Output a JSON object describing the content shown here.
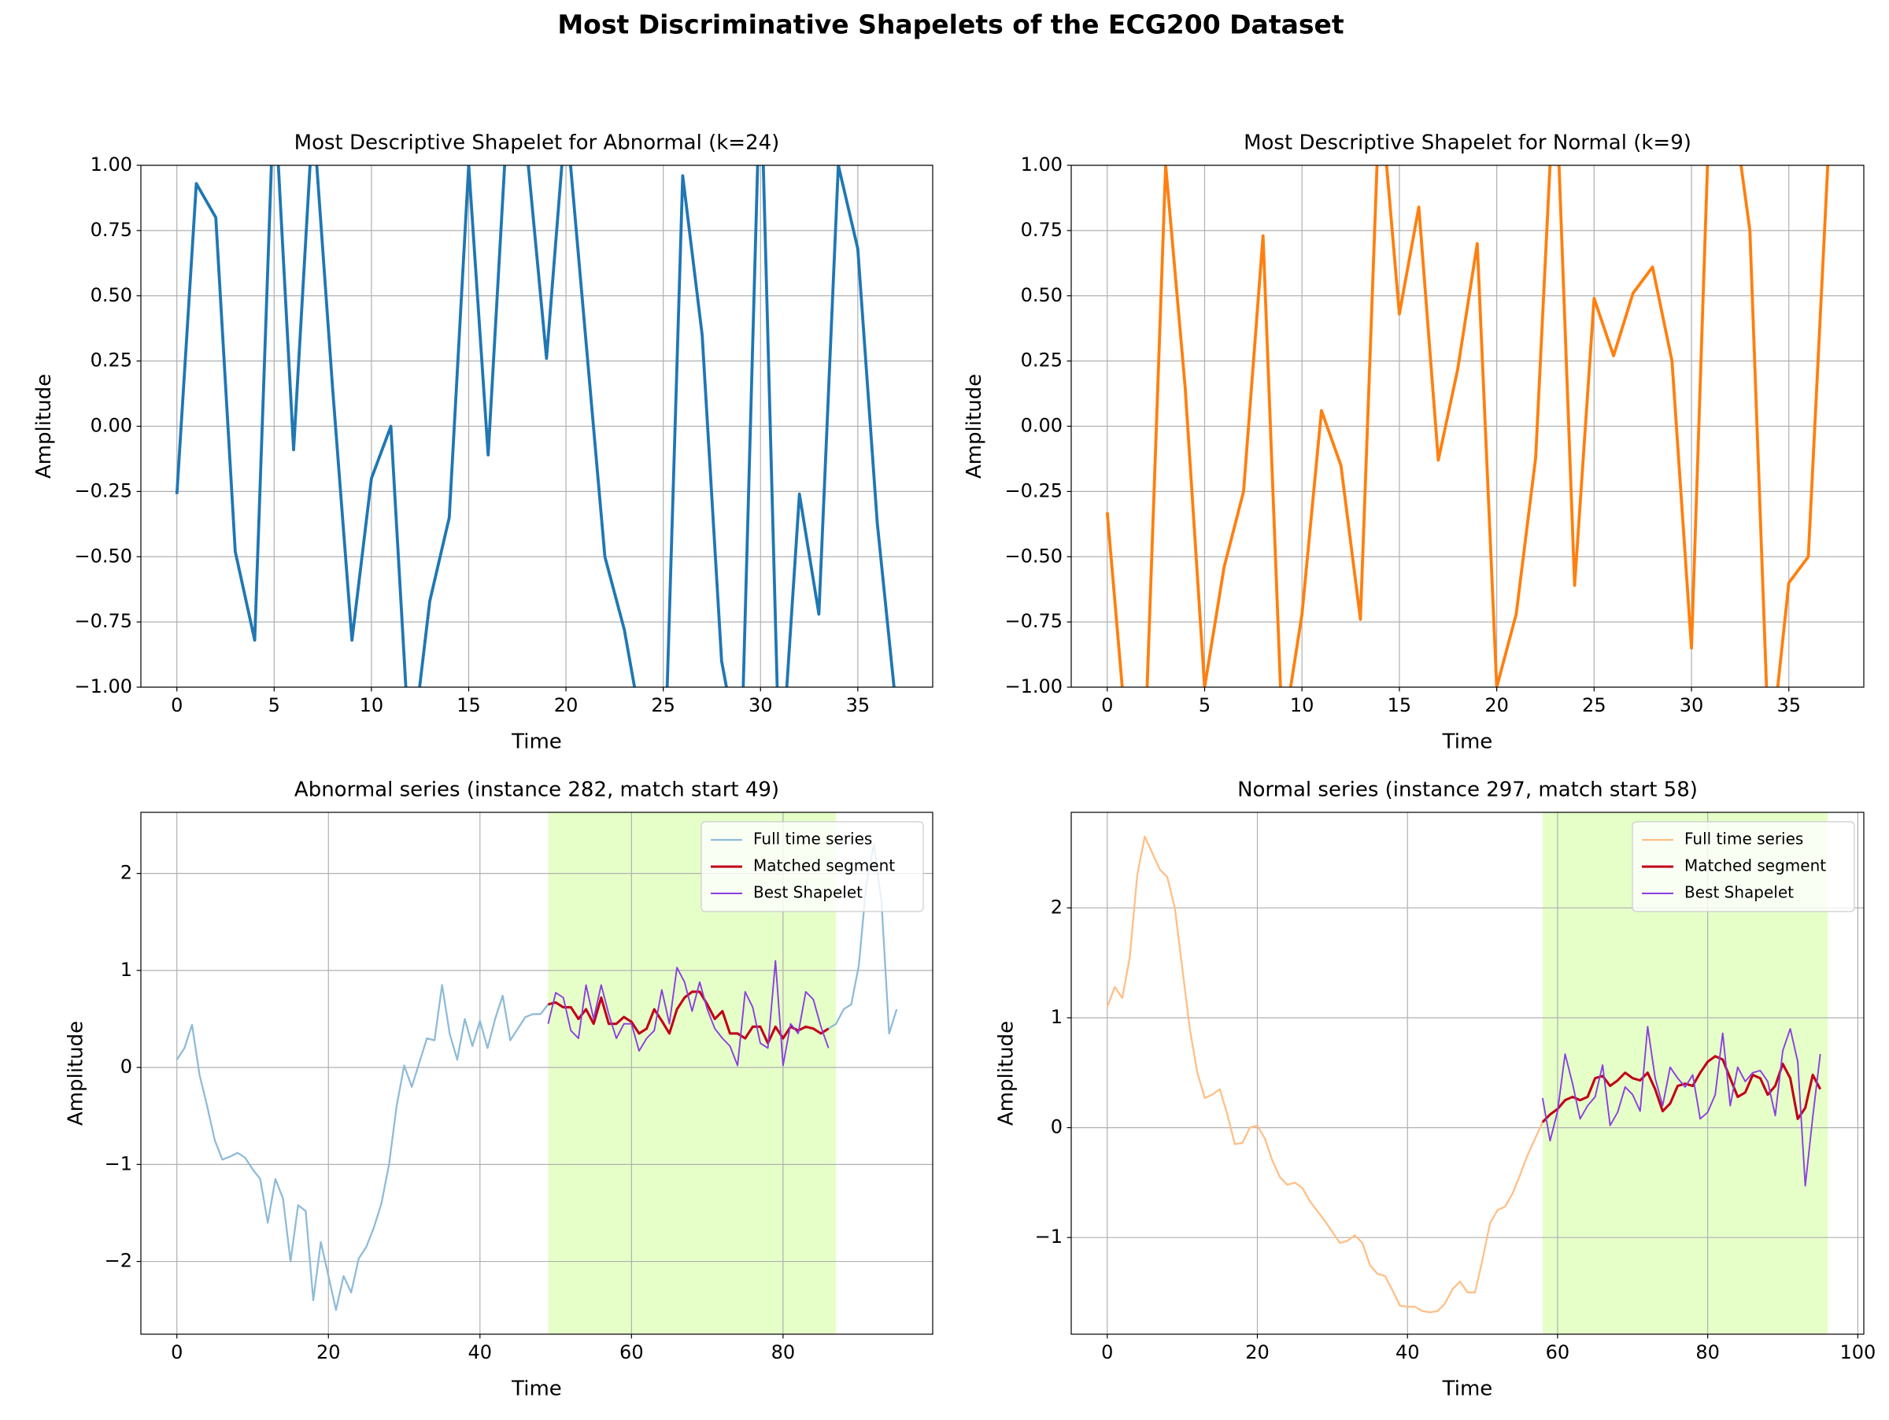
{
  "title": "Most Discriminative Shapelets of the ECG200 Dataset",
  "chart_data": [
    {
      "type": "line",
      "title": "Most Descriptive Shapelet for Abnormal (k=24)",
      "xlabel": "Time",
      "ylabel": "Amplitude",
      "xlim": [
        -1.85,
        38.85
      ],
      "ylim": [
        -1,
        1
      ],
      "grid": true,
      "xticks": [
        0,
        5,
        10,
        15,
        20,
        25,
        30,
        35
      ],
      "yticks": [
        {
          "value": -1,
          "label": "−1.00"
        },
        {
          "value": -0.75,
          "label": "−0.75"
        },
        {
          "value": -0.5,
          "label": "−0.50"
        },
        {
          "value": -0.25,
          "label": "−0.25"
        },
        {
          "value": 0,
          "label": "0.00"
        },
        {
          "value": 0.25,
          "label": "0.25"
        },
        {
          "value": 0.5,
          "label": "0.50"
        },
        {
          "value": 0.75,
          "label": "0.75"
        },
        {
          "value": 1,
          "label": "1.00"
        }
      ],
      "series": [
        {
          "color": "#1f77b4",
          "x": [
            0,
            1,
            2,
            3,
            4,
            5,
            6,
            7,
            8,
            9,
            10,
            11,
            12,
            13,
            14,
            15,
            16,
            17,
            18,
            19,
            20,
            21,
            22,
            23,
            24,
            25,
            26,
            27,
            28,
            29,
            30,
            31,
            32,
            33,
            34,
            35,
            36,
            37
          ],
          "values": [
            -0.26,
            0.93,
            0.8,
            -0.48,
            -0.82,
            1.3,
            -0.09,
            1.2,
            0.15,
            -0.82,
            -0.2,
            0.0,
            -1.3,
            -0.67,
            -0.35,
            1.0,
            -0.11,
            1.2,
            1.05,
            0.26,
            1.2,
            0.35,
            -0.5,
            -0.78,
            -1.2,
            -1.5,
            0.96,
            0.35,
            -0.9,
            -1.3,
            1.4,
            -1.4,
            -0.26,
            -0.72,
            1.0,
            0.68,
            -0.37,
            -1.1
          ]
        }
      ]
    },
    {
      "type": "line",
      "title": "Most Descriptive Shapelet for Normal (k=9)",
      "xlabel": "Time",
      "ylabel": "Amplitude",
      "xlim": [
        -1.85,
        38.85
      ],
      "ylim": [
        -1,
        1
      ],
      "grid": true,
      "xticks": [
        0,
        5,
        10,
        15,
        20,
        25,
        30,
        35
      ],
      "yticks": [
        {
          "value": -1,
          "label": "−1.00"
        },
        {
          "value": -0.75,
          "label": "−0.75"
        },
        {
          "value": -0.5,
          "label": "−0.50"
        },
        {
          "value": -0.25,
          "label": "−0.25"
        },
        {
          "value": 0,
          "label": "0.00"
        },
        {
          "value": 0.25,
          "label": "0.25"
        },
        {
          "value": 0.5,
          "label": "0.50"
        },
        {
          "value": 0.75,
          "label": "0.75"
        },
        {
          "value": 1,
          "label": "1.00"
        }
      ],
      "series": [
        {
          "color": "#ff7f0e",
          "x": [
            0,
            1,
            2,
            3,
            4,
            5,
            6,
            7,
            8,
            9,
            10,
            11,
            12,
            13,
            14,
            15,
            16,
            17,
            18,
            19,
            20,
            21,
            22,
            23,
            24,
            25,
            26,
            27,
            28,
            29,
            30,
            31,
            32,
            33,
            34,
            35,
            36,
            37
          ],
          "values": [
            -0.33,
            -1.2,
            -1.1,
            1.0,
            0.15,
            -1.0,
            -0.54,
            -0.25,
            0.73,
            -1.2,
            -0.72,
            0.06,
            -0.15,
            -0.74,
            1.3,
            0.43,
            0.84,
            -0.13,
            0.22,
            0.7,
            -1.0,
            -0.72,
            -0.12,
            1.4,
            -0.61,
            0.49,
            0.27,
            0.51,
            0.61,
            0.25,
            -0.85,
            1.4,
            1.3,
            0.75,
            -1.3,
            -0.6,
            -0.5,
            1.0
          ]
        }
      ]
    },
    {
      "type": "line",
      "title": "Abnormal series (instance 282, match start 49)",
      "xlabel": "Time",
      "ylabel": "Amplitude",
      "xlim": [
        -4.75,
        99.75
      ],
      "ylim": [
        -2.75,
        2.63
      ],
      "grid": true,
      "legend": "upper right",
      "xticks": [
        0,
        20,
        40,
        60,
        80
      ],
      "yticks": [
        {
          "value": -2,
          "label": "−2"
        },
        {
          "value": -1,
          "label": "−1"
        },
        0,
        1,
        2
      ],
      "highlight": {
        "x": [
          49,
          87
        ],
        "color": "#e6ffc8"
      },
      "series": [
        {
          "name": "Full time series",
          "color": "#8fbbd9",
          "x": [
            0,
            1,
            2,
            3,
            4,
            5,
            6,
            7,
            8,
            9,
            10,
            11,
            12,
            13,
            14,
            15,
            16,
            17,
            18,
            19,
            20,
            21,
            22,
            23,
            24,
            25,
            26,
            27,
            28,
            29,
            30,
            31,
            32,
            33,
            34,
            35,
            36,
            37,
            38,
            39,
            40,
            41,
            42,
            43,
            44,
            45,
            46,
            47,
            48,
            49,
            50,
            51,
            52,
            53,
            54,
            55,
            56,
            57,
            58,
            59,
            60,
            61,
            62,
            63,
            64,
            65,
            66,
            67,
            68,
            69,
            70,
            71,
            72,
            73,
            74,
            75,
            76,
            77,
            78,
            79,
            80,
            81,
            82,
            83,
            84,
            85,
            86,
            87,
            88,
            89,
            90,
            91,
            92,
            93,
            94,
            95
          ],
          "values": [
            0.08,
            0.2,
            0.44,
            -0.08,
            -0.4,
            -0.75,
            -0.95,
            -0.92,
            -0.88,
            -0.93,
            -1.05,
            -1.15,
            -1.6,
            -1.15,
            -1.35,
            -2.0,
            -1.42,
            -1.48,
            -2.4,
            -1.8,
            -2.15,
            -2.5,
            -2.15,
            -2.32,
            -1.97,
            -1.85,
            -1.65,
            -1.4,
            -1.0,
            -0.4,
            0.02,
            -0.2,
            0.05,
            0.3,
            0.28,
            0.85,
            0.35,
            0.08,
            0.5,
            0.22,
            0.48,
            0.2,
            0.5,
            0.74,
            0.28,
            0.4,
            0.52,
            0.55,
            0.55,
            0.65,
            0.67,
            0.62,
            0.62,
            0.5,
            0.6,
            0.45,
            0.72,
            0.45,
            0.45,
            0.52,
            0.47,
            0.35,
            0.4,
            0.6,
            0.48,
            0.35,
            0.6,
            0.72,
            0.78,
            0.78,
            0.65,
            0.5,
            0.58,
            0.35,
            0.35,
            0.3,
            0.42,
            0.42,
            0.25,
            0.42,
            0.3,
            0.42,
            0.38,
            0.42,
            0.4,
            0.35,
            0.4,
            0.45,
            0.6,
            0.65,
            1.05,
            1.9,
            2.3,
            1.7,
            0.35,
            0.6
          ]
        },
        {
          "name": "Matched segment",
          "color": "#c0001a",
          "x": [
            49,
            50,
            51,
            52,
            53,
            54,
            55,
            56,
            57,
            58,
            59,
            60,
            61,
            62,
            63,
            64,
            65,
            66,
            67,
            68,
            69,
            70,
            71,
            72,
            73,
            74,
            75,
            76,
            77,
            78,
            79,
            80,
            81,
            82,
            83,
            84,
            85,
            86
          ],
          "values": [
            0.65,
            0.67,
            0.62,
            0.62,
            0.5,
            0.6,
            0.45,
            0.72,
            0.45,
            0.45,
            0.52,
            0.47,
            0.35,
            0.4,
            0.6,
            0.48,
            0.35,
            0.6,
            0.72,
            0.78,
            0.78,
            0.65,
            0.5,
            0.58,
            0.35,
            0.35,
            0.3,
            0.42,
            0.42,
            0.25,
            0.42,
            0.3,
            0.42,
            0.38,
            0.42,
            0.4,
            0.35,
            0.4
          ]
        },
        {
          "name": "Best Shapelet",
          "color": "#8a3fe0",
          "x": [
            49,
            50,
            51,
            52,
            53,
            54,
            55,
            56,
            57,
            58,
            59,
            60,
            61,
            62,
            63,
            64,
            65,
            66,
            67,
            68,
            69,
            70,
            71,
            72,
            73,
            74,
            75,
            76,
            77,
            78,
            79,
            80,
            81,
            82,
            83,
            84,
            85,
            86
          ],
          "values": [
            0.45,
            0.77,
            0.72,
            0.38,
            0.3,
            0.85,
            0.5,
            0.85,
            0.55,
            0.3,
            0.45,
            0.45,
            0.17,
            0.3,
            0.38,
            0.8,
            0.45,
            1.03,
            0.88,
            0.58,
            0.88,
            0.6,
            0.4,
            0.3,
            0.22,
            0.02,
            0.78,
            0.62,
            0.25,
            0.2,
            1.1,
            0.02,
            0.45,
            0.35,
            0.78,
            0.7,
            0.42,
            0.2
          ]
        }
      ]
    },
    {
      "type": "line",
      "title": "Normal series (instance 297, match start 58)",
      "xlabel": "Time",
      "ylabel": "Amplitude",
      "xlim": [
        -4.8,
        100.8
      ],
      "ylim": [
        -1.88,
        2.87
      ],
      "grid": true,
      "legend": "upper right",
      "xticks": [
        0,
        20,
        40,
        60,
        80,
        100
      ],
      "yticks": [
        {
          "value": -1,
          "label": "−1"
        },
        0,
        1,
        2
      ],
      "highlight": {
        "x": [
          58,
          96
        ],
        "color": "#e6ffc8"
      },
      "series": [
        {
          "name": "Full time series",
          "color": "#ffbf86",
          "x": [
            0,
            1,
            2,
            3,
            4,
            5,
            6,
            7,
            8,
            9,
            10,
            11,
            12,
            13,
            14,
            15,
            16,
            17,
            18,
            19,
            20,
            21,
            22,
            23,
            24,
            25,
            26,
            27,
            28,
            29,
            30,
            31,
            32,
            33,
            34,
            35,
            36,
            37,
            38,
            39,
            40,
            41,
            42,
            43,
            44,
            45,
            46,
            47,
            48,
            49,
            50,
            51,
            52,
            53,
            54,
            55,
            56,
            57,
            58,
            59,
            60,
            61,
            62,
            63,
            64,
            65,
            66,
            67,
            68,
            69,
            70,
            71,
            72,
            73,
            74,
            75,
            76,
            77,
            78,
            79,
            80,
            81,
            82,
            83,
            84,
            85,
            86,
            87,
            88,
            89,
            90,
            91,
            92,
            93,
            94,
            95
          ],
          "values": [
            1.1,
            1.28,
            1.18,
            1.55,
            2.3,
            2.65,
            2.5,
            2.35,
            2.28,
            2.0,
            1.45,
            0.9,
            0.5,
            0.27,
            0.3,
            0.35,
            0.12,
            -0.15,
            -0.14,
            0.0,
            0.02,
            -0.1,
            -0.3,
            -0.45,
            -0.52,
            -0.5,
            -0.55,
            -0.67,
            -0.76,
            -0.85,
            -0.95,
            -1.05,
            -1.03,
            -0.98,
            -1.05,
            -1.25,
            -1.33,
            -1.35,
            -1.48,
            -1.62,
            -1.63,
            -1.63,
            -1.67,
            -1.68,
            -1.67,
            -1.6,
            -1.47,
            -1.4,
            -1.5,
            -1.5,
            -1.2,
            -0.87,
            -0.75,
            -0.72,
            -0.6,
            -0.43,
            -0.25,
            -0.1,
            0.05,
            0.12,
            0.17,
            0.25,
            0.28,
            0.25,
            0.28,
            0.45,
            0.47,
            0.38,
            0.43,
            0.5,
            0.45,
            0.43,
            0.5,
            0.35,
            0.15,
            0.22,
            0.38,
            0.4,
            0.38,
            0.5,
            0.6,
            0.65,
            0.62,
            0.45,
            0.28,
            0.32,
            0.48,
            0.45,
            0.3,
            0.38,
            0.58,
            0.45,
            0.08,
            0.18,
            0.48,
            0.35
          ]
        },
        {
          "name": "Matched segment",
          "color": "#c0001a",
          "x": [
            58,
            59,
            60,
            61,
            62,
            63,
            64,
            65,
            66,
            67,
            68,
            69,
            70,
            71,
            72,
            73,
            74,
            75,
            76,
            77,
            78,
            79,
            80,
            81,
            82,
            83,
            84,
            85,
            86,
            87,
            88,
            89,
            90,
            91,
            92,
            93,
            94,
            95
          ],
          "values": [
            0.05,
            0.12,
            0.17,
            0.25,
            0.28,
            0.25,
            0.28,
            0.45,
            0.47,
            0.38,
            0.43,
            0.5,
            0.45,
            0.43,
            0.5,
            0.35,
            0.15,
            0.22,
            0.38,
            0.4,
            0.38,
            0.5,
            0.6,
            0.65,
            0.62,
            0.45,
            0.28,
            0.32,
            0.48,
            0.45,
            0.3,
            0.38,
            0.58,
            0.45,
            0.08,
            0.18,
            0.48,
            0.35
          ]
        },
        {
          "name": "Best Shapelet",
          "color": "#8a3fe0",
          "x": [
            58,
            59,
            60,
            61,
            62,
            63,
            64,
            65,
            66,
            67,
            68,
            69,
            70,
            71,
            72,
            73,
            74,
            75,
            76,
            77,
            78,
            79,
            80,
            81,
            82,
            83,
            84,
            85,
            86,
            87,
            88,
            89,
            90,
            91,
            92,
            93,
            94,
            95
          ],
          "values": [
            0.27,
            -0.12,
            0.15,
            0.67,
            0.4,
            0.08,
            0.2,
            0.28,
            0.57,
            0.02,
            0.14,
            0.37,
            0.3,
            0.15,
            0.92,
            0.45,
            0.2,
            0.55,
            0.45,
            0.37,
            0.48,
            0.08,
            0.14,
            0.3,
            0.86,
            0.2,
            0.55,
            0.42,
            0.5,
            0.52,
            0.42,
            0.11,
            0.7,
            0.9,
            0.6,
            -0.53,
            0.1,
            0.67
          ]
        }
      ]
    }
  ]
}
